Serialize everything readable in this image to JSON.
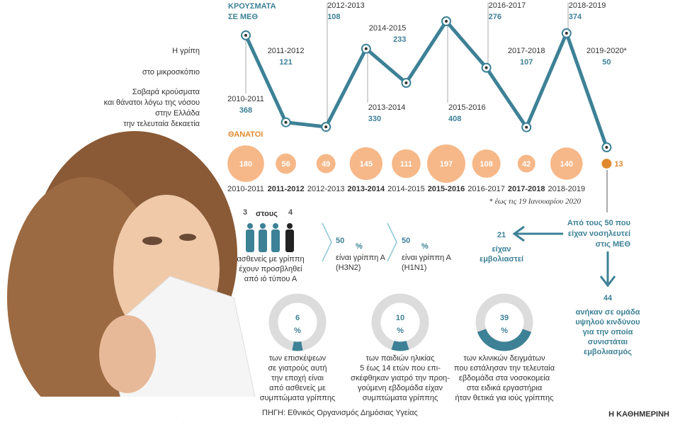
{
  "header": {
    "title": [
      "Η γρίπη",
      "στο μικροσκόπιο"
    ],
    "subtitle": [
      "Σοβαρά κρούσματα",
      "και θάνατοι λόγω της νόσου",
      "στην Ελλάδα",
      "την τελευταία δεκαετία"
    ]
  },
  "chart_data": [
    {
      "type": "line",
      "title": [
        "ΚΡΟΥΣΜΑΤΑ",
        "ΣΕ ΜΕΘ"
      ],
      "categories": [
        "2010-2011",
        "2011-2012",
        "2012-2013",
        "2013-2014",
        "2014-2015",
        "2015-2016",
        "2016-2017",
        "2017-2018",
        "2018-2019",
        "2019-2020*"
      ],
      "values": [
        368,
        121,
        108,
        330,
        233,
        408,
        276,
        107,
        374,
        50
      ],
      "color": "#3d8196"
    },
    {
      "type": "bubble",
      "title": "ΘΑΝΑΤΟΙ",
      "categories": [
        "2010-2011",
        "2011-2012",
        "2012-2013",
        "2013-2014",
        "2014-2015",
        "2015-2016",
        "2016-2017",
        "2017-2018",
        "2018-2019",
        null
      ],
      "values": [
        180,
        56,
        49,
        145,
        111,
        197,
        108,
        42,
        140,
        13
      ],
      "colors": [
        "#f6b889",
        "#f6b889",
        "#f6b889",
        "#f6b889",
        "#f6b889",
        "#f6b889",
        "#f6b889",
        "#f6b889",
        "#f6b889",
        "#e0892f"
      ],
      "note": "* έως τις 19 Ιανουαρίου 2020"
    },
    {
      "type": "donut",
      "values": [
        6
      ],
      "unit": "%",
      "color": "#3d8196",
      "text": [
        "των επισκέψεων",
        "σε γιατρούς αυτή",
        "την εποχή είναι",
        "από ασθενείς με",
        "συμπτώματα γρίππης"
      ]
    },
    {
      "type": "donut",
      "values": [
        10
      ],
      "unit": "%",
      "color": "#3d8196",
      "text": [
        "των παιδιών ηλικίας",
        "5 έως 14 ετών που επι-",
        "σκέφθηκαν γιατρό την προη-",
        "γούμενη εβδομάδα είχαν",
        "συμπτώματα γρίππης"
      ]
    },
    {
      "type": "donut",
      "values": [
        39
      ],
      "unit": "%",
      "color": "#3d8196",
      "text": [
        "των κλινικών δειγμάτων",
        "που εστάλησαν την τελευταία",
        "εβδομάδα στα νοσοκομεία",
        "στα ειδικά εργαστήρια",
        "ήταν θετικά για ιούς γρίππης"
      ]
    }
  ],
  "stats": {
    "ratio": [
      "3",
      "στους",
      "4"
    ],
    "ratio_text": [
      "ασθενείς με γρίππη",
      "έχουν προσβληθεί",
      "από ιό τύπου Α"
    ],
    "strains": [
      {
        "value": "50",
        "unit": "%",
        "text": [
          "είναι γρίππη Α",
          "(H3N2)"
        ]
      },
      {
        "value": "50",
        "unit": "%",
        "text": [
          "είναι γρίππη Α",
          "(H1N1)"
        ]
      }
    ],
    "icu": [
      "Από τους 50 που",
      "είχαν νοσηλευτεί",
      "στις ΜΕΘ"
    ],
    "vaccinated": {
      "value": "21",
      "text": [
        "είχαν",
        "εμβολιαστεί"
      ]
    },
    "risk": {
      "value": "44",
      "text": [
        "ανήκαν σε ομάδα",
        "υψηλού κινδύνου",
        "για την οποία",
        "συνιστάται",
        "εμβολιασμός"
      ]
    }
  },
  "source": "ΠΗΓΗ: Εθνικός Οργανισμός Δημόσιας Υγείας",
  "brand": "Η ΚΑΘΗΜΕΡΙΝΗ"
}
